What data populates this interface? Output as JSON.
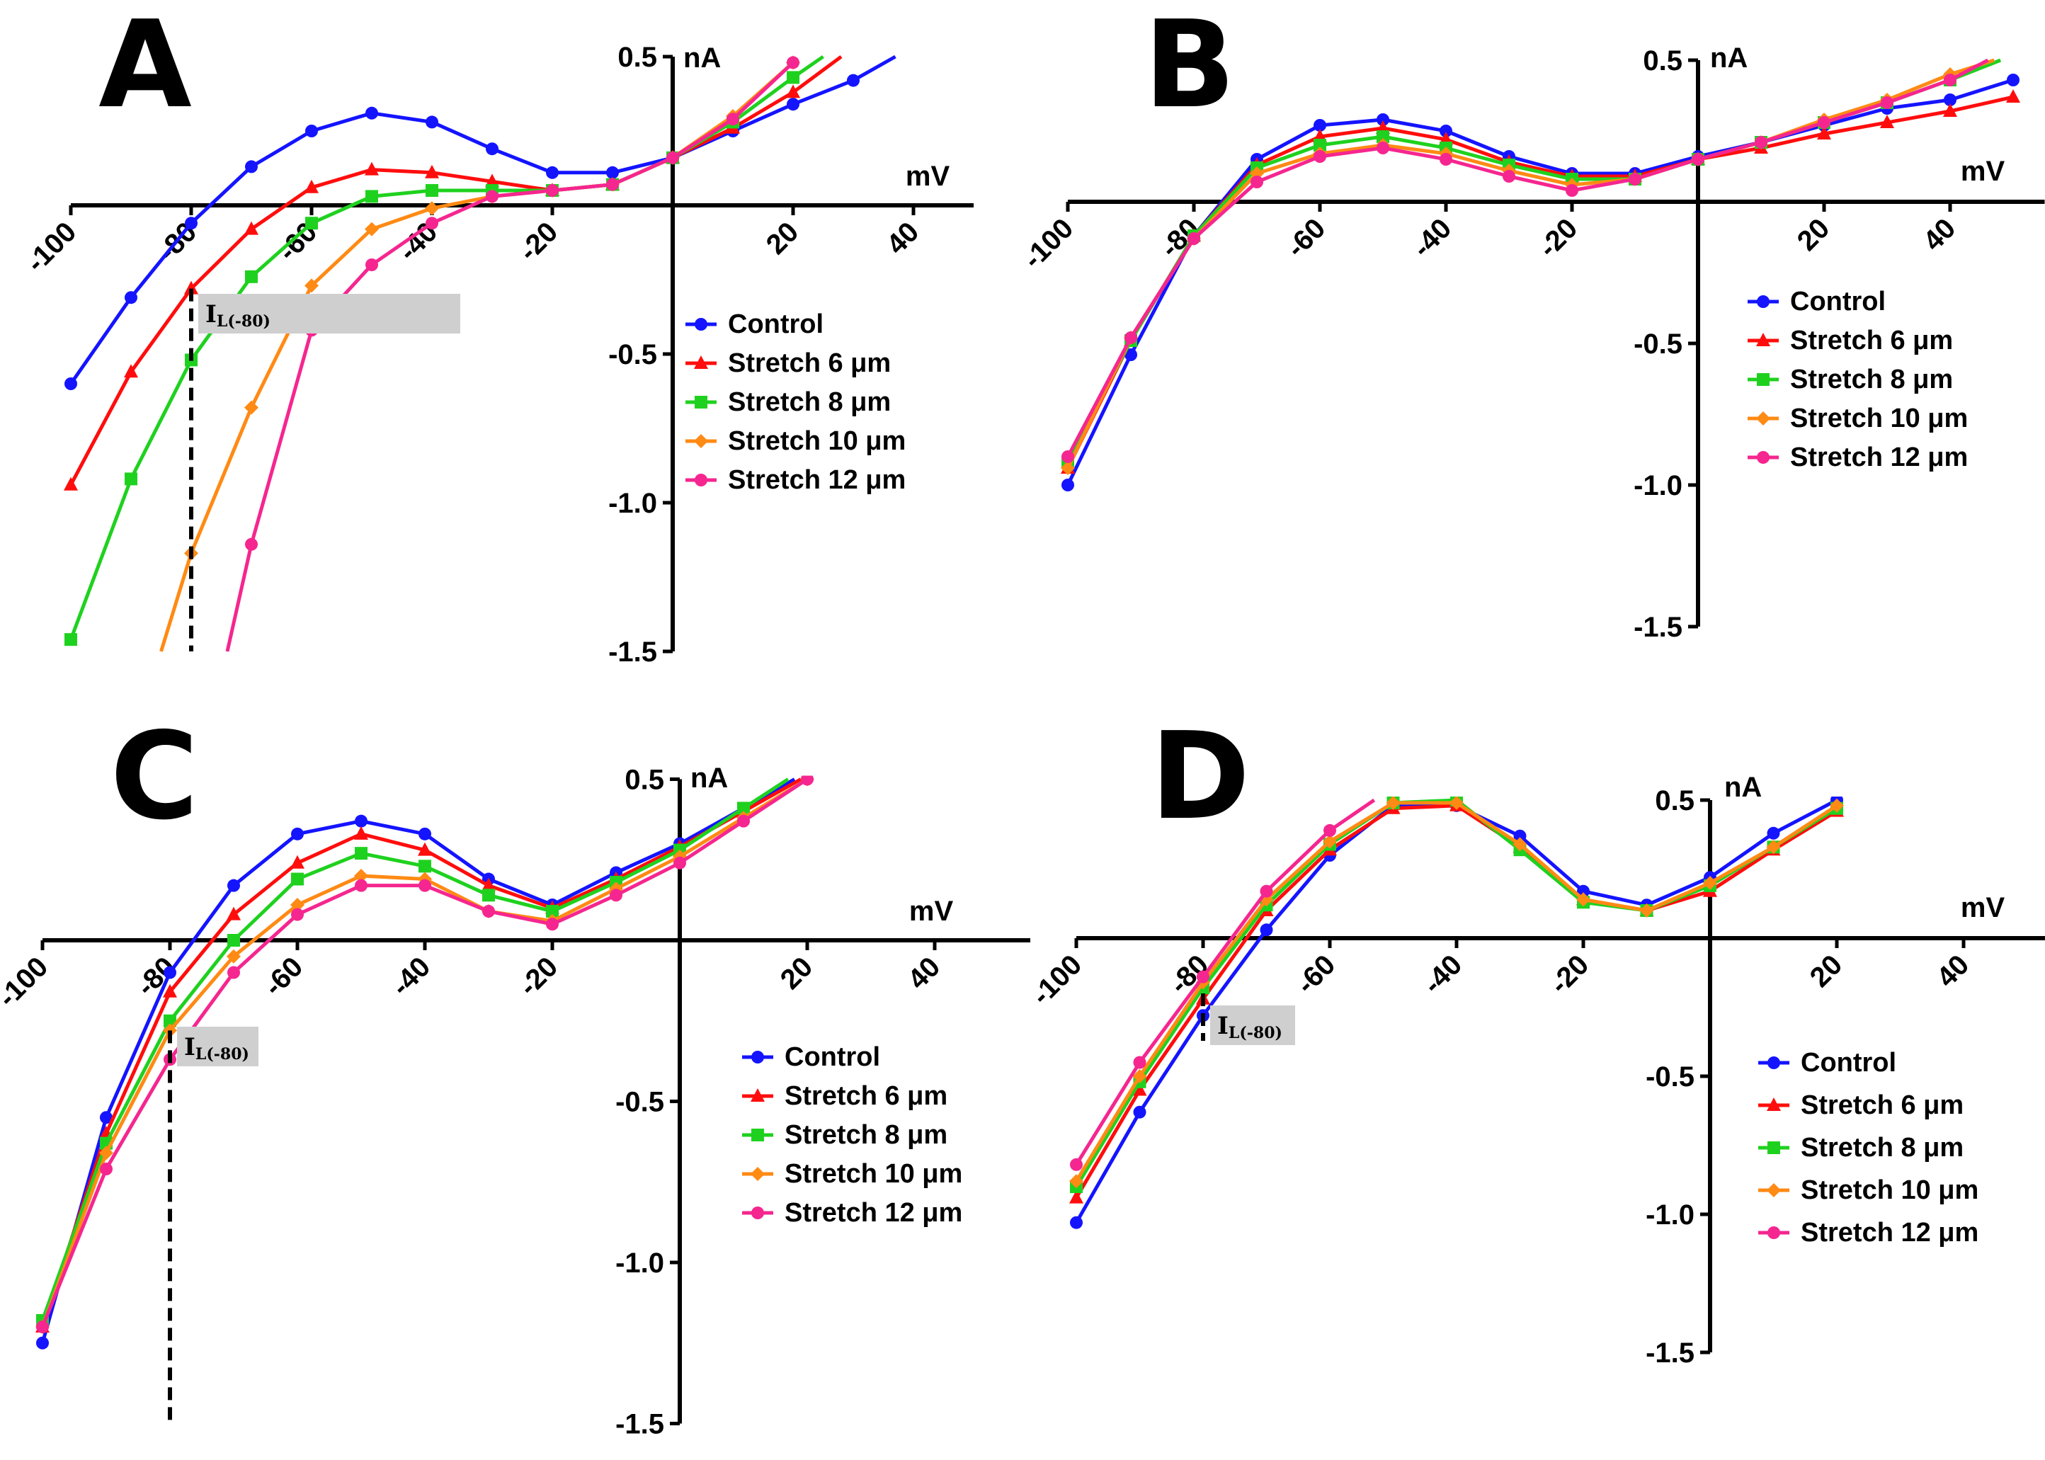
{
  "chart_data": [
    {
      "type": "line",
      "title": "A",
      "xlabel": "mV",
      "ylabel": "nA",
      "xlim": [
        -100,
        50
      ],
      "ylim": [
        -1.5,
        0.5
      ],
      "xticks": [
        "-100",
        "-80",
        "-60",
        "-40",
        "-20",
        "20",
        "40"
      ],
      "yticks": [
        "0.5",
        "-0.5",
        "-1.0",
        "-1.5"
      ],
      "annotation": {
        "text": "I",
        "sub": "L(-80)",
        "x": -80
      },
      "legend": [
        "Control",
        "Stretch 6 μm",
        "Stretch 8 μm",
        "Stretch 10 μm",
        "Stretch 12 μm"
      ],
      "series": [
        {
          "name": "Control",
          "x": [
            -100,
            -90,
            -80,
            -70,
            -60,
            -50,
            -40,
            -30,
            -20,
            -10,
            0,
            10,
            20,
            30,
            37
          ],
          "y": [
            -0.6,
            -0.31,
            -0.06,
            0.13,
            0.25,
            0.31,
            0.28,
            0.19,
            0.11,
            0.11,
            0.16,
            0.25,
            0.34,
            0.42,
            0.5
          ]
        },
        {
          "name": "Stretch 6 μm",
          "x": [
            -100,
            -90,
            -80,
            -70,
            -60,
            -50,
            -40,
            -30,
            -20,
            -10,
            0,
            10,
            20,
            28
          ],
          "y": [
            -0.94,
            -0.56,
            -0.28,
            -0.08,
            0.06,
            0.12,
            0.11,
            0.08,
            0.05,
            0.07,
            0.16,
            0.26,
            0.38,
            0.5
          ]
        },
        {
          "name": "Stretch 8 μm",
          "x": [
            -100,
            -90,
            -80,
            -70,
            -60,
            -50,
            -40,
            -30,
            -20,
            -10,
            0,
            10,
            20,
            25
          ],
          "y": [
            -1.46,
            -0.92,
            -0.52,
            -0.24,
            -0.06,
            0.03,
            0.05,
            0.05,
            0.05,
            0.07,
            0.16,
            0.28,
            0.43,
            0.5
          ]
        },
        {
          "name": "Stretch 10 μm",
          "x": [
            -85,
            -80,
            -70,
            -60,
            -50,
            -40,
            -30,
            -20,
            -10,
            0,
            10,
            20
          ],
          "y": [
            -1.5,
            -1.17,
            -0.68,
            -0.27,
            -0.08,
            -0.01,
            0.03,
            0.05,
            0.07,
            0.16,
            0.3,
            0.48
          ]
        },
        {
          "name": "Stretch 12 μm",
          "x": [
            -74,
            -70,
            -60,
            -50,
            -40,
            -30,
            -20,
            -10,
            0,
            10,
            20
          ],
          "y": [
            -1.5,
            -1.14,
            -0.42,
            -0.2,
            -0.06,
            0.03,
            0.05,
            0.07,
            0.16,
            0.29,
            0.48
          ]
        }
      ]
    },
    {
      "type": "line",
      "title": "B",
      "xlabel": "mV",
      "ylabel": "nA",
      "xlim": [
        -100,
        50
      ],
      "ylim": [
        -1.5,
        0.5
      ],
      "xticks": [
        "-100",
        "-80",
        "-60",
        "-40",
        "-20",
        "20",
        "40"
      ],
      "yticks": [
        "0.5",
        "-0.5",
        "-1.0",
        "-1.5"
      ],
      "legend": [
        "Control",
        "Stretch 6 μm",
        "Stretch 8 μm",
        "Stretch 10 μm",
        "Stretch 12 μm"
      ],
      "series": [
        {
          "name": "Control",
          "x": [
            -100,
            -90,
            -80,
            -70,
            -60,
            -50,
            -40,
            -30,
            -20,
            -10,
            0,
            10,
            20,
            30,
            40,
            50
          ],
          "y": [
            -1.0,
            -0.54,
            -0.12,
            0.15,
            0.27,
            0.29,
            0.25,
            0.16,
            0.1,
            0.1,
            0.16,
            0.21,
            0.27,
            0.33,
            0.36,
            0.43
          ]
        },
        {
          "name": "Stretch 6 μm",
          "x": [
            -100,
            -90,
            -80,
            -70,
            -60,
            -50,
            -40,
            -30,
            -20,
            -10,
            0,
            10,
            20,
            30,
            40,
            50
          ],
          "y": [
            -0.94,
            -0.49,
            -0.12,
            0.13,
            0.23,
            0.26,
            0.22,
            0.14,
            0.09,
            0.09,
            0.15,
            0.19,
            0.24,
            0.28,
            0.32,
            0.37
          ]
        },
        {
          "name": "Stretch 8 μm",
          "x": [
            -100,
            -90,
            -80,
            -70,
            -60,
            -50,
            -40,
            -30,
            -20,
            -10,
            0,
            10,
            20,
            30,
            40,
            48
          ],
          "y": [
            -0.92,
            -0.49,
            -0.12,
            0.12,
            0.2,
            0.23,
            0.19,
            0.13,
            0.08,
            0.08,
            0.15,
            0.21,
            0.28,
            0.35,
            0.43,
            0.5
          ]
        },
        {
          "name": "Stretch 10 μm",
          "x": [
            -100,
            -90,
            -80,
            -70,
            -60,
            -50,
            -40,
            -30,
            -20,
            -10,
            0,
            10,
            20,
            30,
            40,
            47
          ],
          "y": [
            -0.94,
            -0.48,
            -0.13,
            0.1,
            0.17,
            0.2,
            0.17,
            0.11,
            0.06,
            0.08,
            0.15,
            0.21,
            0.29,
            0.36,
            0.45,
            0.5
          ]
        },
        {
          "name": "Stretch 12 μm",
          "x": [
            -100,
            -90,
            -80,
            -70,
            -60,
            -50,
            -40,
            -30,
            -20,
            -10,
            0,
            10,
            20,
            30,
            40,
            46
          ],
          "y": [
            -0.9,
            -0.48,
            -0.13,
            0.07,
            0.16,
            0.19,
            0.15,
            0.09,
            0.04,
            0.08,
            0.15,
            0.21,
            0.28,
            0.35,
            0.43,
            0.5
          ]
        }
      ]
    },
    {
      "type": "line",
      "title": "C",
      "xlabel": "mV",
      "ylabel": "nA",
      "xlim": [
        -100,
        50
      ],
      "ylim": [
        -1.5,
        0.5
      ],
      "xticks": [
        "-100",
        "-80",
        "-60",
        "-40",
        "-20",
        "20",
        "40"
      ],
      "yticks": [
        "0.5",
        "-0.5",
        "-1.0",
        "-1.5"
      ],
      "annotation": {
        "text": "I",
        "sub": "L(-80)",
        "x": -80
      },
      "legend": [
        "Control",
        "Stretch 6 μm",
        "Stretch 8 μm",
        "Stretch 10 μm",
        "Stretch 12 μm"
      ],
      "series": [
        {
          "name": "Control",
          "x": [
            -100,
            -90,
            -80,
            -70,
            -60,
            -50,
            -40,
            -30,
            -20,
            -10,
            0,
            10,
            18
          ],
          "y": [
            -1.25,
            -0.55,
            -0.1,
            0.17,
            0.33,
            0.37,
            0.33,
            0.19,
            0.11,
            0.21,
            0.3,
            0.41,
            0.5
          ]
        },
        {
          "name": "Stretch 6 μm",
          "x": [
            -100,
            -90,
            -80,
            -70,
            -60,
            -50,
            -40,
            -30,
            -20,
            -10,
            0,
            10,
            19
          ],
          "y": [
            -1.2,
            -0.6,
            -0.16,
            0.08,
            0.24,
            0.33,
            0.28,
            0.17,
            0.1,
            0.19,
            0.29,
            0.4,
            0.5
          ]
        },
        {
          "name": "Stretch 8 μm",
          "x": [
            -100,
            -90,
            -80,
            -70,
            -60,
            -50,
            -40,
            -30,
            -20,
            -10,
            0,
            10,
            17
          ],
          "y": [
            -1.18,
            -0.63,
            -0.25,
            0.0,
            0.19,
            0.27,
            0.23,
            0.14,
            0.09,
            0.18,
            0.28,
            0.41,
            0.5
          ]
        },
        {
          "name": "Stretch 10 μm",
          "x": [
            -100,
            -90,
            -80,
            -70,
            -60,
            -50,
            -40,
            -30,
            -20,
            -10,
            0,
            10,
            20
          ],
          "y": [
            -1.2,
            -0.66,
            -0.28,
            -0.05,
            0.11,
            0.2,
            0.19,
            0.09,
            0.06,
            0.16,
            0.26,
            0.38,
            0.5
          ]
        },
        {
          "name": "Stretch 12 μm",
          "x": [
            -100,
            -90,
            -80,
            -70,
            -60,
            -50,
            -40,
            -30,
            -20,
            -10,
            0,
            10,
            20
          ],
          "y": [
            -1.2,
            -0.71,
            -0.37,
            -0.1,
            0.08,
            0.17,
            0.17,
            0.09,
            0.05,
            0.14,
            0.24,
            0.37,
            0.5
          ]
        }
      ]
    },
    {
      "type": "line",
      "title": "D",
      "xlabel": "mV",
      "ylabel": "nA",
      "xlim": [
        -100,
        50
      ],
      "ylim": [
        -1.5,
        0.5
      ],
      "xticks": [
        "-100",
        "-80",
        "-60",
        "-40",
        "-20",
        "20",
        "40"
      ],
      "yticks": [
        "0.5",
        "-0.5",
        "-1.0",
        "-1.5"
      ],
      "annotation": {
        "text": "I",
        "sub": "L(-80)",
        "x": -80
      },
      "legend": [
        "Control",
        "Stretch 6 μm",
        "Stretch 8 μm",
        "Stretch 10 μm",
        "Stretch 12 μm"
      ],
      "series": [
        {
          "name": "Control",
          "x": [
            -100,
            -90,
            -80,
            -70,
            -60,
            -50,
            -40,
            -30,
            -20,
            -10,
            0,
            10,
            20
          ],
          "y": [
            -1.03,
            -0.63,
            -0.28,
            0.03,
            0.3,
            0.48,
            0.48,
            0.37,
            0.17,
            0.12,
            0.22,
            0.38,
            0.5
          ]
        },
        {
          "name": "Stretch 6 μm",
          "x": [
            -100,
            -90,
            -80,
            -70,
            -60,
            -50,
            -40,
            -30,
            -20,
            -10,
            0,
            10,
            20
          ],
          "y": [
            -0.94,
            -0.55,
            -0.22,
            0.1,
            0.32,
            0.47,
            0.48,
            0.33,
            0.14,
            0.1,
            0.17,
            0.32,
            0.46
          ]
        },
        {
          "name": "Stretch 8 μm",
          "x": [
            -100,
            -90,
            -80,
            -70,
            -60,
            -50,
            -40,
            -30,
            -20,
            -10,
            0,
            10,
            20
          ],
          "y": [
            -0.9,
            -0.52,
            -0.18,
            0.12,
            0.34,
            0.49,
            0.5,
            0.32,
            0.13,
            0.1,
            0.19,
            0.33,
            0.47
          ]
        },
        {
          "name": "Stretch 10 μm",
          "x": [
            -100,
            -90,
            -80,
            -70,
            -60,
            -50,
            -40,
            -30,
            -20,
            -10,
            0,
            10,
            20
          ],
          "y": [
            -0.88,
            -0.5,
            -0.16,
            0.14,
            0.35,
            0.49,
            0.49,
            0.34,
            0.14,
            0.1,
            0.2,
            0.33,
            0.48
          ]
        },
        {
          "name": "Stretch 12 μm",
          "x": [
            -100,
            -90,
            -80,
            -70,
            -60,
            -53
          ],
          "y": [
            -0.82,
            -0.45,
            -0.14,
            0.17,
            0.39,
            0.5
          ]
        }
      ]
    }
  ],
  "series_colors": [
    "#1414ff",
    "#ff0d0d",
    "#1fd11f",
    "#ff8a14",
    "#f5268f"
  ]
}
